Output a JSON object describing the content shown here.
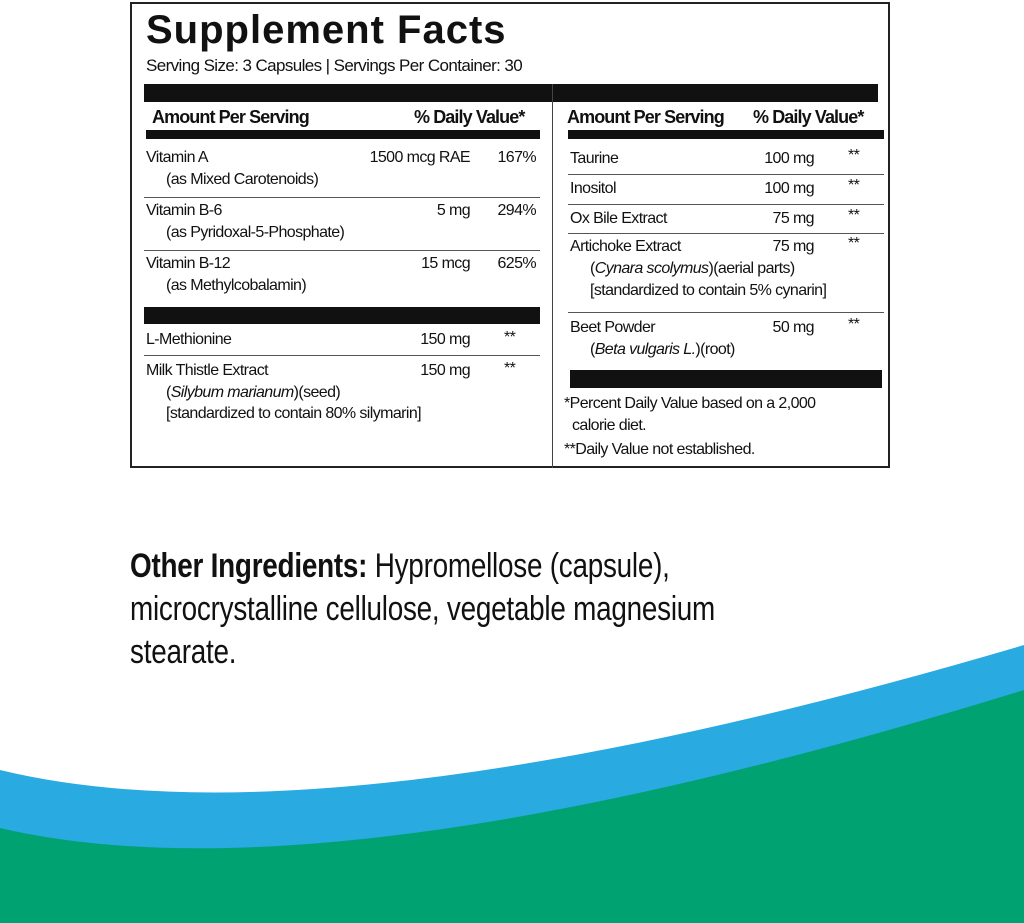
{
  "label": {
    "title": "Supplement Facts",
    "serving_line": "Serving Size: 3 Capsules | Servings Per Container: 30",
    "header": {
      "amount": "Amount Per Serving",
      "dv": "% Daily Value*"
    },
    "left_group1": [
      {
        "name": "Vitamin A",
        "source": "(as Mixed Carotenoids)",
        "amount": "1500 mcg RAE",
        "dv": "167%"
      },
      {
        "name": "Vitamin B-6",
        "source": "(as Pyridoxal-5-Phosphate)",
        "amount": "5 mg",
        "dv": "294%"
      },
      {
        "name": "Vitamin B-12",
        "source": "(as Methylcobalamin)",
        "amount": "15 mcg",
        "dv": "625%"
      }
    ],
    "left_group2": [
      {
        "name": "L-Methionine",
        "amount": "150 mg",
        "dv": "**"
      },
      {
        "name": "Milk Thistle Extract",
        "latin": "Silybum marianum",
        "part": "(seed)",
        "std": "[standardized to contain 80% silymarin]",
        "amount": "150 mg",
        "dv": "**"
      }
    ],
    "right": [
      {
        "name": "Taurine",
        "amount": "100 mg",
        "dv": "**"
      },
      {
        "name": "Inositol",
        "amount": "100 mg",
        "dv": "**"
      },
      {
        "name": "Ox Bile Extract",
        "amount": "75 mg",
        "dv": "**"
      },
      {
        "name": "Artichoke Extract",
        "latin": "Cynara scolymus",
        "part": "(aerial parts)",
        "std": "[standardized to contain 5% cynarin]",
        "amount": "75 mg",
        "dv": "**"
      },
      {
        "name": "Beet Powder",
        "latin": "Beta vulgaris L.",
        "part": "(root)",
        "amount": "50 mg",
        "dv": "**"
      }
    ],
    "footnotes": {
      "line1": "*Percent Daily Value based on a 2,000",
      "line2": "calorie diet.",
      "line3": "**Daily Value not established."
    }
  },
  "other_ingredients": {
    "label": "Other Ingredients:",
    "text": " Hypromellose (capsule), microcrystalline cellulose, vegetable magnesium stearate."
  },
  "colors": {
    "wave_blue": "#29aae1",
    "wave_green": "#00a271"
  }
}
